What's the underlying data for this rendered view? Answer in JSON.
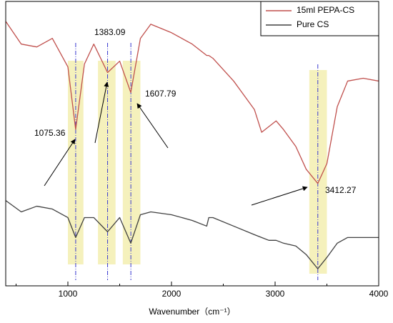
{
  "chart_data": {
    "type": "line",
    "xlabel": "Wavenumber（cm⁻¹）",
    "x": [
      400,
      550,
      700,
      850,
      1000,
      1075,
      1160,
      1250,
      1383,
      1500,
      1607,
      1700,
      1800,
      2000,
      2200,
      2340,
      2360,
      2400,
      2600,
      2800,
      2870,
      2940,
      3010,
      3080,
      3200,
      3300,
      3412,
      3500,
      3600,
      3700,
      3850,
      4000
    ],
    "series": [
      {
        "name": "15ml PEPA-CS",
        "color": "#c0504d",
        "values": [
          93,
          85,
          84,
          87,
          77,
          55,
          78,
          85,
          75,
          79,
          68,
          87,
          92,
          89,
          85,
          81,
          81,
          80,
          72,
          62,
          54,
          56,
          58,
          55,
          49,
          41,
          36,
          43,
          63,
          72,
          73,
          72
        ]
      },
      {
        "name": "Pure CS",
        "color": "#404040",
        "values": [
          30,
          26,
          28,
          27,
          24,
          17,
          24,
          24,
          19,
          24,
          15,
          25,
          26,
          25,
          23,
          21,
          24,
          24,
          21,
          18,
          17,
          16,
          16,
          15,
          14,
          11,
          6,
          10,
          15,
          17,
          17,
          17
        ]
      }
    ],
    "xlim": [
      400,
      4000
    ],
    "xticks": [
      1000,
      2000,
      3000,
      4000
    ],
    "xticks_minor": [
      500,
      1500,
      2500,
      3500
    ],
    "ylim": [
      0,
      100
    ],
    "peaks": [
      1075.36,
      1383.09,
      1607.79,
      3412.27
    ],
    "bands": [
      [
        1000,
        1150
      ],
      [
        1290,
        1460
      ],
      [
        1530,
        1700
      ],
      [
        3330,
        3500
      ]
    ],
    "legend": "upper right"
  }
}
